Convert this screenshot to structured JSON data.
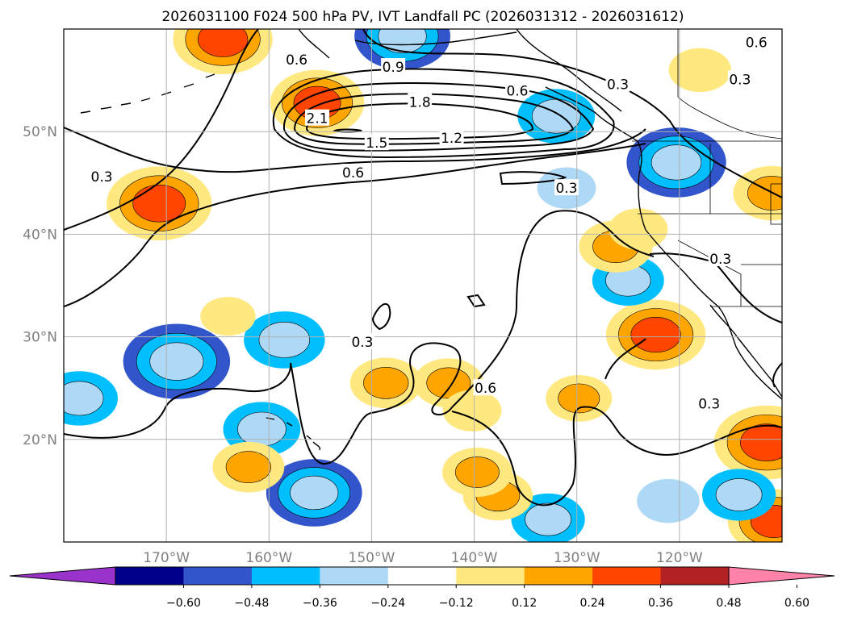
{
  "title": "2026031100 F024 500 hPa PV, IVT Landfall PC (2026031312 - 2026031612)",
  "map": {
    "lon_range": [
      -180,
      -110
    ],
    "lat_range": [
      10,
      60
    ],
    "lon_ticks": [
      {
        "lon": -170,
        "label": "170°W"
      },
      {
        "lon": -160,
        "label": "160°W"
      },
      {
        "lon": -150,
        "label": "150°W"
      },
      {
        "lon": -140,
        "label": "140°W"
      },
      {
        "lon": -130,
        "label": "130°W"
      },
      {
        "lon": -120,
        "label": "120°W"
      }
    ],
    "lat_ticks": [
      {
        "lat": 20,
        "label": "20°N"
      },
      {
        "lat": 30,
        "label": "30°N"
      },
      {
        "lat": 40,
        "label": "40°N"
      },
      {
        "lat": 50,
        "label": "50°N"
      }
    ]
  },
  "contour_labels": [
    {
      "text": "0.9",
      "lon": -147.9,
      "lat": 56.3
    },
    {
      "text": "1.8",
      "lon": -145.3,
      "lat": 52.9
    },
    {
      "text": "2.1",
      "lon": -155.3,
      "lat": 51.3
    },
    {
      "text": "1.5",
      "lon": -149.5,
      "lat": 48.9
    },
    {
      "text": "1.2",
      "lon": -142.2,
      "lat": 49.4
    },
    {
      "text": "0.6",
      "lon": -157.3,
      "lat": 57.0
    },
    {
      "text": "0.6",
      "lon": -135.8,
      "lat": 54.0
    },
    {
      "text": "0.6",
      "lon": -112.5,
      "lat": 58.7
    },
    {
      "text": "0.6",
      "lon": -151.8,
      "lat": 46.0
    },
    {
      "text": "0.6",
      "lon": -138.9,
      "lat": 25.0
    },
    {
      "text": "0.3",
      "lon": -176.3,
      "lat": 45.6
    },
    {
      "text": "0.3",
      "lon": -126.0,
      "lat": 54.6
    },
    {
      "text": "0.3",
      "lon": -114.1,
      "lat": 55.1
    },
    {
      "text": "0.3",
      "lon": -131.0,
      "lat": 44.5
    },
    {
      "text": "0.3",
      "lon": -116.0,
      "lat": 37.6
    },
    {
      "text": "0.3",
      "lon": -150.9,
      "lat": 29.5
    },
    {
      "text": "0.3",
      "lon": -117.1,
      "lat": 23.5
    }
  ],
  "ivt_pc_field": [
    {
      "lon": -164.5,
      "lat": 59.0,
      "value": 0.42
    },
    {
      "lon": -155.3,
      "lat": 52.8,
      "value": 0.39
    },
    {
      "lon": -170.7,
      "lat": 43.0,
      "value": 0.45
    },
    {
      "lon": -122.3,
      "lat": 30.2,
      "value": 0.42
    },
    {
      "lon": -111.5,
      "lat": 19.7,
      "value": 0.45
    },
    {
      "lon": -110.8,
      "lat": 12.0,
      "value": 0.38
    },
    {
      "lon": -111.0,
      "lat": 44.0,
      "value": 0.3
    },
    {
      "lon": -120.3,
      "lat": 47.0,
      "value": -0.42
    },
    {
      "lon": -147.0,
      "lat": 59.3,
      "value": -0.4
    },
    {
      "lon": -169.0,
      "lat": 27.6,
      "value": -0.46
    },
    {
      "lon": -155.6,
      "lat": 14.8,
      "value": -0.4
    },
    {
      "lon": -178.5,
      "lat": 24.0,
      "value": -0.3
    },
    {
      "lon": -158.5,
      "lat": 29.7,
      "value": -0.32
    },
    {
      "lon": -160.7,
      "lat": 21.0,
      "value": -0.3
    },
    {
      "lon": -132.0,
      "lat": 51.5,
      "value": -0.3
    },
    {
      "lon": -131.0,
      "lat": 44.5,
      "value": -0.2
    },
    {
      "lon": -125.0,
      "lat": 35.5,
      "value": -0.27
    },
    {
      "lon": -132.8,
      "lat": 12.2,
      "value": -0.28
    },
    {
      "lon": -114.2,
      "lat": 14.6,
      "value": -0.28
    },
    {
      "lon": -121.1,
      "lat": 14.0,
      "value": -0.22
    },
    {
      "lon": -126.2,
      "lat": 38.8,
      "value": 0.28
    },
    {
      "lon": -162.0,
      "lat": 17.3,
      "value": 0.27
    },
    {
      "lon": -142.5,
      "lat": 25.5,
      "value": 0.26
    },
    {
      "lon": -148.6,
      "lat": 25.5,
      "value": 0.27
    },
    {
      "lon": -137.7,
      "lat": 14.5,
      "value": 0.26
    },
    {
      "lon": -139.7,
      "lat": 16.8,
      "value": 0.26
    },
    {
      "lon": -129.8,
      "lat": 24.0,
      "value": 0.24
    },
    {
      "lon": -118.0,
      "lat": 56.0,
      "value": 0.22
    },
    {
      "lon": -164.0,
      "lat": 32.0,
      "value": 0.18
    },
    {
      "lon": -124.0,
      "lat": 40.5,
      "value": 0.2
    },
    {
      "lon": -140.2,
      "lat": 22.8,
      "value": 0.2
    }
  ],
  "colorbar": {
    "levels": [
      -0.72,
      -0.6,
      -0.48,
      -0.36,
      -0.24,
      -0.12,
      0.12,
      0.24,
      0.36,
      0.48,
      0.6,
      0.72
    ],
    "colors": [
      "#9933cc",
      "#00008b",
      "#3355cc",
      "#00bfff",
      "#add8f6",
      "#ffffff",
      "#ffe880",
      "#ffa500",
      "#ff4500",
      "#b22222",
      "#ff82a8"
    ],
    "tick_labels": [
      "−0.60",
      "−0.48",
      "−0.36",
      "−0.24",
      "−0.12",
      "0.12",
      "0.24",
      "0.36",
      "0.48",
      "0.60"
    ]
  }
}
